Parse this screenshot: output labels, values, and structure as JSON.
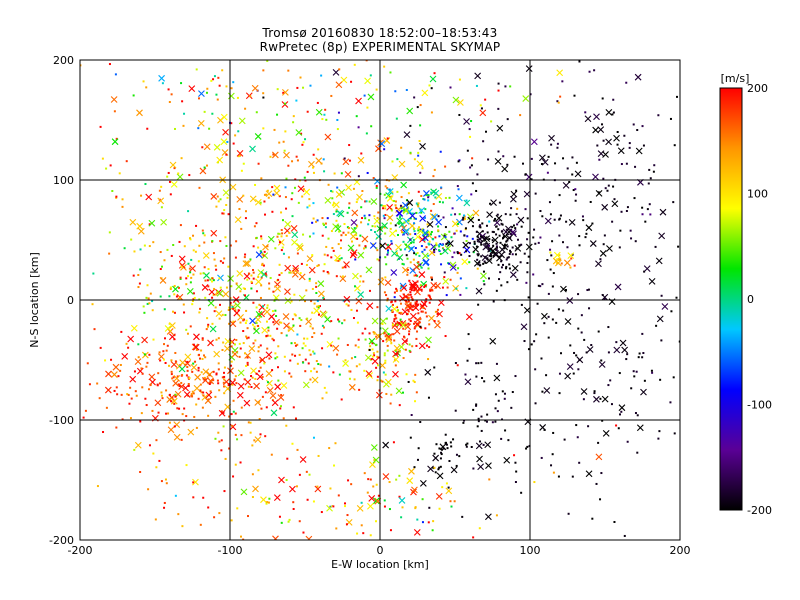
{
  "title_lines": [
    "Tromsø 20160830 18:52:00–18:53:43",
    "RwPretec (8p) EXPERIMENTAL SKYMAP"
  ],
  "chart_data": {
    "type": "scatter",
    "xlabel": "E-W location [km]",
    "ylabel": "N-S location [km]",
    "xlim": [
      -200,
      200
    ],
    "ylim": [
      -200,
      200
    ],
    "xticks": [
      "-200",
      "-100",
      "0",
      "100",
      "200"
    ],
    "yticks": [
      "-200",
      "-100",
      "0",
      "100",
      "200"
    ],
    "grid": true,
    "colorbar": {
      "label": "[m/s]",
      "range": [
        -200,
        200
      ],
      "ticks": [
        "-200",
        "-100",
        "0",
        "100",
        "200"
      ],
      "colors": [
        "#000000",
        "#5a0096",
        "#0000ff",
        "#00c8ff",
        "#00e600",
        "#ffff00",
        "#ff9600",
        "#ff0000"
      ],
      "position": "right"
    },
    "markers": [
      "dot",
      "x"
    ],
    "clusters": [
      {
        "x": -125,
        "y": -70,
        "sx": 30,
        "sy": 20,
        "n": 260,
        "v": 175,
        "sv": 30
      },
      {
        "x": -75,
        "y": -30,
        "sx": 40,
        "sy": 30,
        "n": 260,
        "v": 120,
        "sv": 60
      },
      {
        "x": -110,
        "y": 10,
        "sx": 45,
        "sy": 35,
        "n": 220,
        "v": 130,
        "sv": 70
      },
      {
        "x": -60,
        "y": 60,
        "sx": 45,
        "sy": 45,
        "n": 240,
        "v": 140,
        "sv": 60
      },
      {
        "x": 0,
        "y": 60,
        "sx": 30,
        "sy": 25,
        "n": 220,
        "v": 80,
        "sv": 80
      },
      {
        "x": 30,
        "y": 60,
        "sx": 20,
        "sy": 25,
        "n": 200,
        "v": -20,
        "sv": 90
      },
      {
        "x": 22,
        "y": -5,
        "sx": 10,
        "sy": 15,
        "n": 160,
        "v": 190,
        "sv": 25
      },
      {
        "x": 5,
        "y": -45,
        "sx": 10,
        "sy": 20,
        "n": 110,
        "v": 120,
        "sv": 60
      },
      {
        "x": 75,
        "y": 45,
        "sx": 12,
        "sy": 12,
        "n": 150,
        "v": -195,
        "sv": 10
      },
      {
        "x": 130,
        "y": 40,
        "sx": 45,
        "sy": 80,
        "n": 240,
        "v": -195,
        "sv": 10
      },
      {
        "x": 120,
        "y": 120,
        "sx": 50,
        "sy": 50,
        "n": 130,
        "v": -190,
        "sv": 20
      },
      {
        "x": 60,
        "y": -100,
        "sx": 30,
        "sy": 40,
        "n": 70,
        "v": -195,
        "sv": 10
      },
      {
        "x": 40,
        "y": -130,
        "sx": 10,
        "sy": 10,
        "n": 30,
        "v": -200,
        "sv": 5
      },
      {
        "x": -10,
        "y": -170,
        "sx": 50,
        "sy": 25,
        "n": 120,
        "v": 120,
        "sv": 80
      },
      {
        "x": -100,
        "y": 120,
        "sx": 60,
        "sy": 50,
        "n": 130,
        "v": 120,
        "sv": 80
      },
      {
        "x": 40,
        "y": 170,
        "sx": 50,
        "sy": 25,
        "n": 50,
        "v": 80,
        "sv": 100
      },
      {
        "x": -110,
        "y": -150,
        "sx": 50,
        "sy": 30,
        "n": 70,
        "v": 140,
        "sv": 60
      },
      {
        "x": -90,
        "y": 170,
        "sx": 50,
        "sy": 20,
        "n": 50,
        "v": 40,
        "sv": 100
      },
      {
        "x": 150,
        "y": -60,
        "sx": 30,
        "sy": 60,
        "n": 80,
        "v": -195,
        "sv": 10
      },
      {
        "x": 120,
        "y": 32,
        "sx": 6,
        "sy": 5,
        "n": 15,
        "v": 130,
        "sv": 30
      }
    ]
  }
}
